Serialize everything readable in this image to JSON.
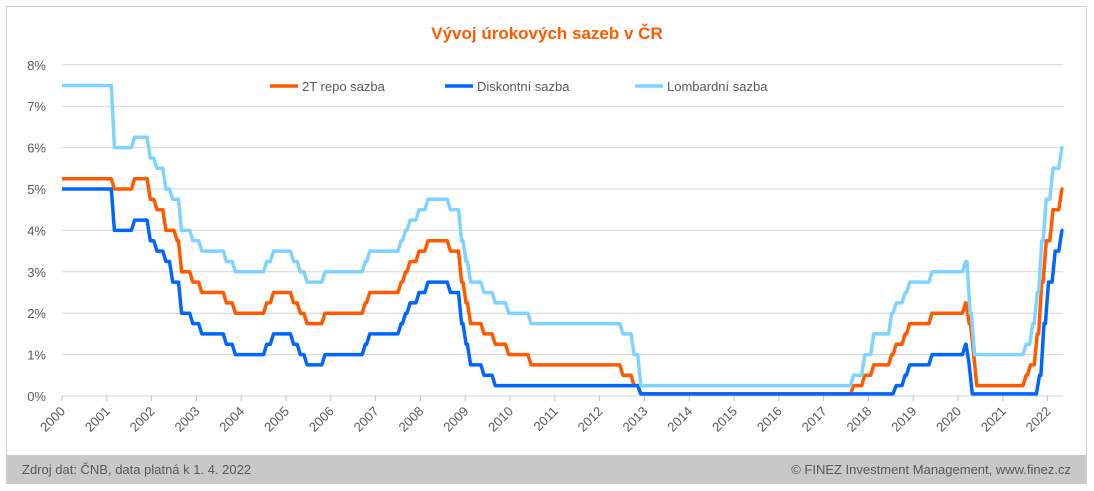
{
  "chart_data": {
    "type": "line",
    "title": "Vývoj úrokových sazeb v ČR",
    "xlabel": "",
    "ylabel": "",
    "xlim": [
      2000,
      2022.3
    ],
    "ylim": [
      0,
      8
    ],
    "x_ticks": [
      "2000",
      "2001",
      "2002",
      "2003",
      "2004",
      "2005",
      "2006",
      "2007",
      "2008",
      "2009",
      "2010",
      "2011",
      "2012",
      "2013",
      "2014",
      "2015",
      "2016",
      "2017",
      "2018",
      "2019",
      "2020",
      "2021",
      "2022"
    ],
    "y_ticks": [
      "0%",
      "1%",
      "2%",
      "3%",
      "4%",
      "5%",
      "6%",
      "7%",
      "8%"
    ],
    "grid": true,
    "legend_position": "top",
    "series": [
      {
        "name": "2T repo sazba",
        "color": "#ff5a00",
        "steps": [
          [
            2000,
            5.25
          ],
          [
            2001.1,
            5.0
          ],
          [
            2001.55,
            5.25
          ],
          [
            2001.9,
            4.75
          ],
          [
            2002.05,
            4.5
          ],
          [
            2002.25,
            4.0
          ],
          [
            2002.5,
            3.75
          ],
          [
            2002.6,
            3.0
          ],
          [
            2002.85,
            2.75
          ],
          [
            2003.05,
            2.5
          ],
          [
            2003.6,
            2.25
          ],
          [
            2003.8,
            2.0
          ],
          [
            2004.5,
            2.25
          ],
          [
            2004.65,
            2.5
          ],
          [
            2005.1,
            2.25
          ],
          [
            2005.25,
            2.0
          ],
          [
            2005.4,
            1.75
          ],
          [
            2005.8,
            2.0
          ],
          [
            2006.7,
            2.25
          ],
          [
            2006.8,
            2.5
          ],
          [
            2007.5,
            2.75
          ],
          [
            2007.6,
            3.0
          ],
          [
            2007.7,
            3.25
          ],
          [
            2007.9,
            3.5
          ],
          [
            2008.1,
            3.75
          ],
          [
            2008.6,
            3.5
          ],
          [
            2008.85,
            2.75
          ],
          [
            2008.95,
            2.25
          ],
          [
            2009.05,
            1.75
          ],
          [
            2009.35,
            1.5
          ],
          [
            2009.6,
            1.25
          ],
          [
            2009.9,
            1.0
          ],
          [
            2010.4,
            0.75
          ],
          [
            2012.45,
            0.5
          ],
          [
            2012.7,
            0.25
          ],
          [
            2012.85,
            0.05
          ],
          [
            2017.6,
            0.25
          ],
          [
            2017.85,
            0.5
          ],
          [
            2018.05,
            0.75
          ],
          [
            2018.45,
            1.0
          ],
          [
            2018.55,
            1.25
          ],
          [
            2018.75,
            1.5
          ],
          [
            2018.85,
            1.75
          ],
          [
            2019.35,
            2.0
          ],
          [
            2020.1,
            2.25
          ],
          [
            2020.18,
            1.75
          ],
          [
            2020.28,
            1.0
          ],
          [
            2020.35,
            0.25
          ],
          [
            2021.45,
            0.5
          ],
          [
            2021.55,
            0.75
          ],
          [
            2021.7,
            1.5
          ],
          [
            2021.8,
            2.75
          ],
          [
            2021.9,
            3.75
          ],
          [
            2022.05,
            4.5
          ],
          [
            2022.25,
            5.0
          ]
        ]
      },
      {
        "name": "Diskontní sazba",
        "color": "#0066ff",
        "steps": [
          [
            2000,
            5.0
          ],
          [
            2001.1,
            4.0
          ],
          [
            2001.55,
            4.25
          ],
          [
            2001.9,
            3.75
          ],
          [
            2002.05,
            3.5
          ],
          [
            2002.25,
            3.25
          ],
          [
            2002.4,
            2.75
          ],
          [
            2002.6,
            2.0
          ],
          [
            2002.85,
            1.75
          ],
          [
            2003.05,
            1.5
          ],
          [
            2003.6,
            1.25
          ],
          [
            2003.8,
            1.0
          ],
          [
            2004.5,
            1.25
          ],
          [
            2004.65,
            1.5
          ],
          [
            2005.1,
            1.25
          ],
          [
            2005.25,
            1.0
          ],
          [
            2005.4,
            0.75
          ],
          [
            2005.8,
            1.0
          ],
          [
            2006.7,
            1.25
          ],
          [
            2006.8,
            1.5
          ],
          [
            2007.5,
            1.75
          ],
          [
            2007.6,
            2.0
          ],
          [
            2007.7,
            2.25
          ],
          [
            2007.9,
            2.5
          ],
          [
            2008.1,
            2.75
          ],
          [
            2008.6,
            2.5
          ],
          [
            2008.85,
            1.75
          ],
          [
            2008.95,
            1.25
          ],
          [
            2009.05,
            0.75
          ],
          [
            2009.35,
            0.5
          ],
          [
            2009.6,
            0.25
          ],
          [
            2012.85,
            0.05
          ],
          [
            2018.55,
            0.25
          ],
          [
            2018.75,
            0.5
          ],
          [
            2018.85,
            0.75
          ],
          [
            2019.35,
            1.0
          ],
          [
            2020.1,
            1.25
          ],
          [
            2020.18,
            0.75
          ],
          [
            2020.25,
            0.05
          ],
          [
            2021.75,
            0.5
          ],
          [
            2021.85,
            1.75
          ],
          [
            2021.95,
            2.75
          ],
          [
            2022.1,
            3.5
          ],
          [
            2022.25,
            4.0
          ]
        ]
      },
      {
        "name": "Lombardní sazba",
        "color": "#7fd4ff",
        "steps": [
          [
            2000,
            7.5
          ],
          [
            2001.1,
            6.0
          ],
          [
            2001.55,
            6.25
          ],
          [
            2001.9,
            5.75
          ],
          [
            2002.05,
            5.5
          ],
          [
            2002.25,
            5.0
          ],
          [
            2002.4,
            4.75
          ],
          [
            2002.6,
            4.0
          ],
          [
            2002.85,
            3.75
          ],
          [
            2003.05,
            3.5
          ],
          [
            2003.6,
            3.25
          ],
          [
            2003.8,
            3.0
          ],
          [
            2004.5,
            3.25
          ],
          [
            2004.65,
            3.5
          ],
          [
            2005.1,
            3.25
          ],
          [
            2005.25,
            3.0
          ],
          [
            2005.4,
            2.75
          ],
          [
            2005.8,
            3.0
          ],
          [
            2006.7,
            3.25
          ],
          [
            2006.8,
            3.5
          ],
          [
            2007.5,
            3.75
          ],
          [
            2007.6,
            4.0
          ],
          [
            2007.7,
            4.25
          ],
          [
            2007.9,
            4.5
          ],
          [
            2008.1,
            4.75
          ],
          [
            2008.6,
            4.5
          ],
          [
            2008.85,
            3.75
          ],
          [
            2008.95,
            3.25
          ],
          [
            2009.05,
            2.75
          ],
          [
            2009.35,
            2.5
          ],
          [
            2009.6,
            2.25
          ],
          [
            2009.9,
            2.0
          ],
          [
            2010.4,
            1.75
          ],
          [
            2012.45,
            1.5
          ],
          [
            2012.7,
            1.0
          ],
          [
            2012.85,
            0.25
          ],
          [
            2017.6,
            0.5
          ],
          [
            2017.85,
            1.0
          ],
          [
            2018.05,
            1.5
          ],
          [
            2018.45,
            2.0
          ],
          [
            2018.55,
            2.25
          ],
          [
            2018.75,
            2.5
          ],
          [
            2018.85,
            2.75
          ],
          [
            2019.35,
            3.0
          ],
          [
            2020.1,
            3.25
          ],
          [
            2020.2,
            2.0
          ],
          [
            2020.3,
            1.0
          ],
          [
            2021.45,
            1.25
          ],
          [
            2021.6,
            1.75
          ],
          [
            2021.7,
            2.5
          ],
          [
            2021.8,
            3.75
          ],
          [
            2021.9,
            4.75
          ],
          [
            2022.05,
            5.5
          ],
          [
            2022.25,
            6.0
          ]
        ]
      }
    ]
  },
  "footer": {
    "source": "Zdroj dat: ČNB, data platná k 1. 4. 2022",
    "copyright": "© FINEZ Investment Management, www.finez.cz"
  }
}
